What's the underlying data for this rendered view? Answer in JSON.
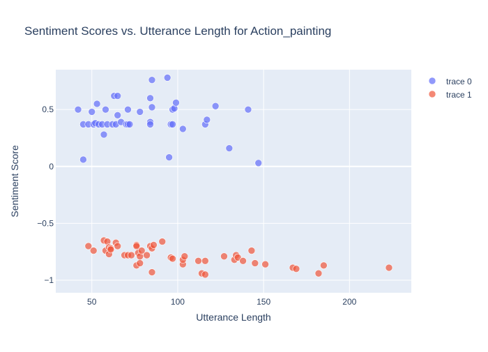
{
  "chart_data": {
    "type": "scatter",
    "title": "Sentiment Scores vs. Utterance Length for Action_painting",
    "xlabel": "Utterance Length",
    "ylabel": "Sentiment Score",
    "xlim": [
      29,
      236
    ],
    "ylim": [
      -1.11,
      0.85
    ],
    "x_ticks": [
      50,
      100,
      150,
      200
    ],
    "y_ticks": [
      -1,
      -0.5,
      0,
      0.5
    ],
    "y_tick_labels": [
      "−1",
      "−0.5",
      "0",
      "0.5"
    ],
    "grid": true,
    "legend_position": "top-right",
    "colors": {
      "plot_bg": "#E5ECF6",
      "grid": "#ffffff",
      "text": "#2a3f5f"
    },
    "series": [
      {
        "name": "trace 0",
        "color": "#636EFA",
        "points": [
          {
            "x": 42,
            "y": 0.5
          },
          {
            "x": 45,
            "y": 0.37
          },
          {
            "x": 45,
            "y": 0.06
          },
          {
            "x": 48,
            "y": 0.37
          },
          {
            "x": 50,
            "y": 0.48
          },
          {
            "x": 51,
            "y": 0.37
          },
          {
            "x": 52,
            "y": 0.38
          },
          {
            "x": 53,
            "y": 0.55
          },
          {
            "x": 54,
            "y": 0.37
          },
          {
            "x": 56,
            "y": 0.37
          },
          {
            "x": 57,
            "y": 0.28
          },
          {
            "x": 58,
            "y": 0.5
          },
          {
            "x": 59,
            "y": 0.37
          },
          {
            "x": 62,
            "y": 0.37
          },
          {
            "x": 63,
            "y": 0.62
          },
          {
            "x": 64,
            "y": 0.37
          },
          {
            "x": 65,
            "y": 0.62
          },
          {
            "x": 65,
            "y": 0.45
          },
          {
            "x": 67,
            "y": 0.39
          },
          {
            "x": 70,
            "y": 0.37
          },
          {
            "x": 71,
            "y": 0.5
          },
          {
            "x": 71,
            "y": 0.37
          },
          {
            "x": 72,
            "y": 0.37
          },
          {
            "x": 78,
            "y": 0.48
          },
          {
            "x": 84,
            "y": 0.6
          },
          {
            "x": 84,
            "y": 0.39
          },
          {
            "x": 84,
            "y": 0.37
          },
          {
            "x": 85,
            "y": 0.76
          },
          {
            "x": 85,
            "y": 0.52
          },
          {
            "x": 94,
            "y": 0.78
          },
          {
            "x": 95,
            "y": 0.08
          },
          {
            "x": 96,
            "y": 0.37
          },
          {
            "x": 97,
            "y": 0.37
          },
          {
            "x": 97,
            "y": 0.5
          },
          {
            "x": 98,
            "y": 0.51
          },
          {
            "x": 99,
            "y": 0.56
          },
          {
            "x": 103,
            "y": 0.33
          },
          {
            "x": 116,
            "y": 0.37
          },
          {
            "x": 117,
            "y": 0.41
          },
          {
            "x": 122,
            "y": 0.53
          },
          {
            "x": 130,
            "y": 0.16
          },
          {
            "x": 141,
            "y": 0.5
          },
          {
            "x": 147,
            "y": 0.03
          }
        ]
      },
      {
        "name": "trace 1",
        "color": "#EF553B",
        "points": [
          {
            "x": 48,
            "y": -0.7
          },
          {
            "x": 51,
            "y": -0.74
          },
          {
            "x": 57,
            "y": -0.65
          },
          {
            "x": 58,
            "y": -0.74
          },
          {
            "x": 59,
            "y": -0.66
          },
          {
            "x": 60,
            "y": -0.71
          },
          {
            "x": 60,
            "y": -0.77
          },
          {
            "x": 61,
            "y": -0.72
          },
          {
            "x": 61,
            "y": -0.73
          },
          {
            "x": 64,
            "y": -0.67
          },
          {
            "x": 65,
            "y": -0.7
          },
          {
            "x": 69,
            "y": -0.78
          },
          {
            "x": 71,
            "y": -0.78
          },
          {
            "x": 73,
            "y": -0.78
          },
          {
            "x": 76,
            "y": -0.69
          },
          {
            "x": 76,
            "y": -0.7
          },
          {
            "x": 76,
            "y": -0.87
          },
          {
            "x": 77,
            "y": -0.76
          },
          {
            "x": 78,
            "y": -0.85
          },
          {
            "x": 78,
            "y": -0.79
          },
          {
            "x": 79,
            "y": -0.74
          },
          {
            "x": 82,
            "y": -0.78
          },
          {
            "x": 84,
            "y": -0.7
          },
          {
            "x": 85,
            "y": -0.72
          },
          {
            "x": 85,
            "y": -0.93
          },
          {
            "x": 86,
            "y": -0.69
          },
          {
            "x": 91,
            "y": -0.66
          },
          {
            "x": 96,
            "y": -0.8
          },
          {
            "x": 97,
            "y": -0.81
          },
          {
            "x": 103,
            "y": -0.86
          },
          {
            "x": 103,
            "y": -0.82
          },
          {
            "x": 104,
            "y": -0.79
          },
          {
            "x": 112,
            "y": -0.83
          },
          {
            "x": 114,
            "y": -0.94
          },
          {
            "x": 116,
            "y": -0.95
          },
          {
            "x": 116,
            "y": -0.83
          },
          {
            "x": 127,
            "y": -0.79
          },
          {
            "x": 133,
            "y": -0.82
          },
          {
            "x": 134,
            "y": -0.78
          },
          {
            "x": 135,
            "y": -0.8
          },
          {
            "x": 138,
            "y": -0.83
          },
          {
            "x": 143,
            "y": -0.74
          },
          {
            "x": 145,
            "y": -0.85
          },
          {
            "x": 151,
            "y": -0.86
          },
          {
            "x": 167,
            "y": -0.89
          },
          {
            "x": 169,
            "y": -0.9
          },
          {
            "x": 182,
            "y": -0.94
          },
          {
            "x": 185,
            "y": -0.87
          },
          {
            "x": 223,
            "y": -0.89
          }
        ]
      }
    ]
  }
}
